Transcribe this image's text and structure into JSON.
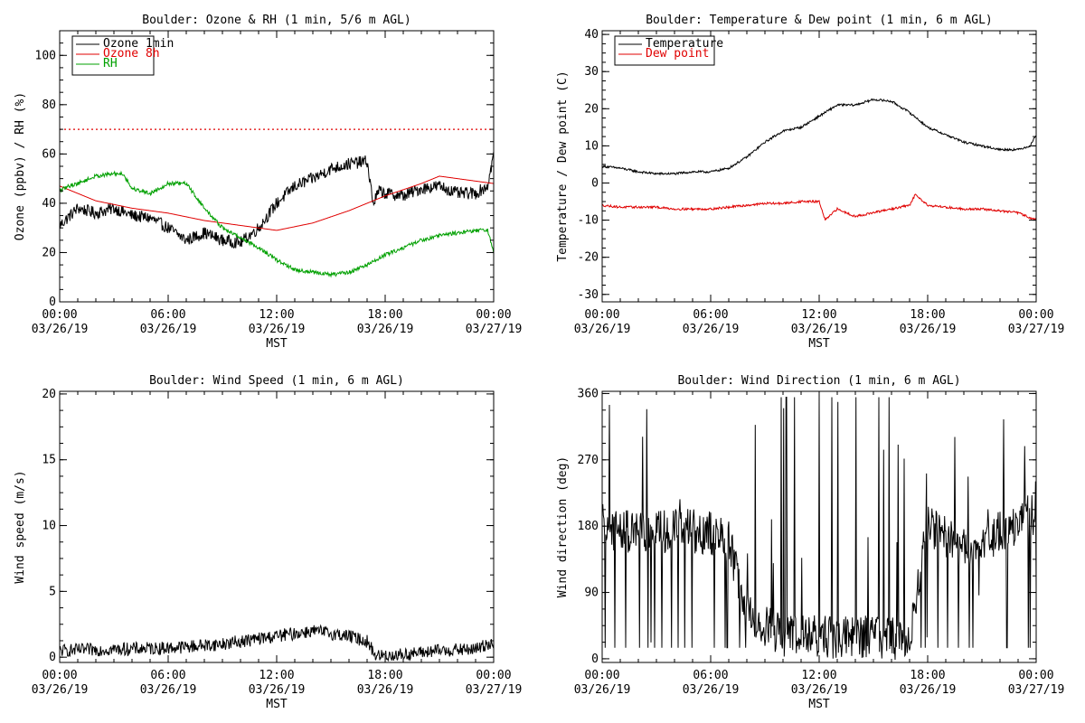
{
  "chart_data": [
    {
      "type": "line",
      "title": "Boulder: Ozone & RH (1 min, 5/6 m AGL)",
      "xlabel": "MST",
      "ylabel": "Ozone (ppbv) / RH (%)",
      "xlim": [
        "2019-03-26 00:00",
        "2019-03-27 00:00"
      ],
      "ylim": [
        0,
        110
      ],
      "yticks": [
        0,
        20,
        40,
        60,
        80,
        100
      ],
      "xticks": [
        {
          "time": "00:00",
          "date": "03/26/19"
        },
        {
          "time": "06:00",
          "date": "03/26/19"
        },
        {
          "time": "12:00",
          "date": "03/26/19"
        },
        {
          "time": "18:00",
          "date": "03/26/19"
        },
        {
          "time": "00:00",
          "date": "03/27/19"
        }
      ],
      "legend_position": "top-left",
      "reference_lines": [
        {
          "y": 70,
          "color": "#e00000",
          "style": "dotted"
        }
      ],
      "series": [
        {
          "name": "Ozone 1min",
          "color": "#000000",
          "noise": 2.5,
          "points": [
            [
              "00:00",
              31
            ],
            [
              "01:00",
              38
            ],
            [
              "02:00",
              36
            ],
            [
              "03:00",
              38
            ],
            [
              "04:00",
              35
            ],
            [
              "05:00",
              34
            ],
            [
              "06:00",
              30
            ],
            [
              "07:00",
              25
            ],
            [
              "08:00",
              28
            ],
            [
              "09:00",
              25
            ],
            [
              "10:00",
              24
            ],
            [
              "11:00",
              30
            ],
            [
              "12:00",
              40
            ],
            [
              "13:00",
              47
            ],
            [
              "14:00",
              50
            ],
            [
              "15:00",
              54
            ],
            [
              "16:00",
              56
            ],
            [
              "17:00",
              57
            ],
            [
              "17:20",
              40
            ],
            [
              "17:40",
              45
            ],
            [
              "18:00",
              44
            ],
            [
              "19:00",
              43
            ],
            [
              "20:00",
              46
            ],
            [
              "21:00",
              47
            ],
            [
              "22:00",
              44
            ],
            [
              "23:00",
              44
            ],
            [
              "23:40",
              47
            ],
            [
              "24:00",
              60
            ]
          ]
        },
        {
          "name": "Ozone 8h",
          "color": "#e00000",
          "noise": 0,
          "points": [
            [
              "00:00",
              47
            ],
            [
              "02:00",
              41
            ],
            [
              "04:00",
              38
            ],
            [
              "06:00",
              36
            ],
            [
              "08:00",
              33
            ],
            [
              "10:00",
              31
            ],
            [
              "12:00",
              29
            ],
            [
              "14:00",
              32
            ],
            [
              "16:00",
              37
            ],
            [
              "18:00",
              43
            ],
            [
              "20:00",
              48
            ],
            [
              "21:00",
              51
            ],
            [
              "22:00",
              50
            ],
            [
              "23:00",
              49
            ],
            [
              "24:00",
              48
            ]
          ]
        },
        {
          "name": "RH",
          "color": "#00a000",
          "noise": 0.8,
          "points": [
            [
              "00:00",
              45
            ],
            [
              "00:30",
              47
            ],
            [
              "01:00",
              48
            ],
            [
              "02:00",
              51
            ],
            [
              "03:00",
              52
            ],
            [
              "03:30",
              52
            ],
            [
              "04:00",
              46
            ],
            [
              "05:00",
              44
            ],
            [
              "06:00",
              48
            ],
            [
              "07:00",
              48
            ],
            [
              "08:00",
              38
            ],
            [
              "09:00",
              30
            ],
            [
              "10:00",
              26
            ],
            [
              "11:00",
              22
            ],
            [
              "12:00",
              17
            ],
            [
              "13:00",
              13
            ],
            [
              "14:00",
              12
            ],
            [
              "15:00",
              11
            ],
            [
              "16:00",
              12
            ],
            [
              "17:00",
              15
            ],
            [
              "18:00",
              19
            ],
            [
              "19:00",
              22
            ],
            [
              "20:00",
              25
            ],
            [
              "21:00",
              27
            ],
            [
              "22:00",
              28
            ],
            [
              "23:00",
              29
            ],
            [
              "23:40",
              29
            ],
            [
              "24:00",
              20
            ]
          ]
        }
      ]
    },
    {
      "type": "line",
      "title": "Boulder: Temperature & Dew point (1 min, 6 m AGL)",
      "xlabel": "MST",
      "ylabel": "Temperature / Dew point (C)",
      "xlim": [
        "2019-03-26 00:00",
        "2019-03-27 00:00"
      ],
      "ylim": [
        -32,
        41
      ],
      "yticks": [
        -30,
        -20,
        -10,
        0,
        10,
        20,
        30,
        40
      ],
      "xticks": [
        {
          "time": "00:00",
          "date": "03/26/19"
        },
        {
          "time": "06:00",
          "date": "03/26/19"
        },
        {
          "time": "12:00",
          "date": "03/26/19"
        },
        {
          "time": "18:00",
          "date": "03/26/19"
        },
        {
          "time": "00:00",
          "date": "03/27/19"
        }
      ],
      "legend_position": "top-left",
      "series": [
        {
          "name": "Temperature",
          "color": "#000000",
          "noise": 0.3,
          "points": [
            [
              "00:00",
              4.5
            ],
            [
              "01:00",
              4
            ],
            [
              "02:00",
              3
            ],
            [
              "03:00",
              2.5
            ],
            [
              "04:00",
              2.5
            ],
            [
              "05:00",
              3
            ],
            [
              "06:00",
              3
            ],
            [
              "07:00",
              4
            ],
            [
              "08:00",
              7
            ],
            [
              "09:00",
              11
            ],
            [
              "10:00",
              14
            ],
            [
              "11:00",
              15
            ],
            [
              "12:00",
              18
            ],
            [
              "13:00",
              21
            ],
            [
              "14:00",
              21
            ],
            [
              "15:00",
              22.5
            ],
            [
              "16:00",
              22
            ],
            [
              "17:00",
              19
            ],
            [
              "18:00",
              15
            ],
            [
              "19:00",
              13
            ],
            [
              "20:00",
              11
            ],
            [
              "21:00",
              10
            ],
            [
              "22:00",
              9
            ],
            [
              "23:00",
              9
            ],
            [
              "23:40",
              10
            ],
            [
              "24:00",
              13
            ]
          ]
        },
        {
          "name": "Dew point",
          "color": "#e00000",
          "noise": 0.3,
          "points": [
            [
              "00:00",
              -6
            ],
            [
              "01:00",
              -6.5
            ],
            [
              "02:00",
              -6.5
            ],
            [
              "03:00",
              -6.5
            ],
            [
              "04:00",
              -7
            ],
            [
              "05:00",
              -7
            ],
            [
              "06:00",
              -7
            ],
            [
              "07:00",
              -6.5
            ],
            [
              "08:00",
              -6
            ],
            [
              "09:00",
              -5.5
            ],
            [
              "10:00",
              -5.5
            ],
            [
              "11:00",
              -5
            ],
            [
              "12:00",
              -5
            ],
            [
              "12:20",
              -10
            ],
            [
              "13:00",
              -7
            ],
            [
              "14:00",
              -9
            ],
            [
              "15:00",
              -8
            ],
            [
              "16:00",
              -7
            ],
            [
              "17:00",
              -6
            ],
            [
              "17:20",
              -3
            ],
            [
              "18:00",
              -6
            ],
            [
              "19:00",
              -6.5
            ],
            [
              "20:00",
              -7
            ],
            [
              "21:00",
              -7
            ],
            [
              "22:00",
              -7.5
            ],
            [
              "23:00",
              -8
            ],
            [
              "24:00",
              -10
            ]
          ]
        }
      ]
    },
    {
      "type": "line",
      "title": "Boulder: Wind Speed (1 min, 6 m AGL)",
      "xlabel": "MST",
      "ylabel": "Wind speed (m/s)",
      "xlim": [
        "2019-03-26 00:00",
        "2019-03-27 00:00"
      ],
      "ylim": [
        -0.4,
        20.2
      ],
      "yticks": [
        0,
        5,
        10,
        15,
        20
      ],
      "xticks": [
        {
          "time": "00:00",
          "date": "03/26/19"
        },
        {
          "time": "06:00",
          "date": "03/26/19"
        },
        {
          "time": "12:00",
          "date": "03/26/19"
        },
        {
          "time": "18:00",
          "date": "03/26/19"
        },
        {
          "time": "00:00",
          "date": "03/27/19"
        }
      ],
      "series": [
        {
          "name": "",
          "color": "#000000",
          "noise": 0.5,
          "points": [
            [
              "00:00",
              0.5
            ],
            [
              "03:00",
              0.6
            ],
            [
              "06:00",
              0.7
            ],
            [
              "09:00",
              1.0
            ],
            [
              "12:00",
              1.6
            ],
            [
              "14:00",
              2.0
            ],
            [
              "16:00",
              1.6
            ],
            [
              "17:00",
              1.2
            ],
            [
              "17:30",
              0.1
            ],
            [
              "19:00",
              0.2
            ],
            [
              "21:00",
              0.5
            ],
            [
              "23:00",
              0.6
            ],
            [
              "24:00",
              1.2
            ]
          ]
        }
      ]
    },
    {
      "type": "line",
      "title": "Boulder: Wind Direction (1 min, 6 m AGL)",
      "xlabel": "MST",
      "ylabel": "Wind direction (deg)",
      "xlim": [
        "2019-03-26 00:00",
        "2019-03-27 00:00"
      ],
      "ylim": [
        -5,
        363
      ],
      "yticks": [
        0,
        90,
        180,
        270,
        360
      ],
      "xticks": [
        {
          "time": "00:00",
          "date": "03/26/19"
        },
        {
          "time": "06:00",
          "date": "03/26/19"
        },
        {
          "time": "12:00",
          "date": "03/26/19"
        },
        {
          "time": "18:00",
          "date": "03/26/19"
        },
        {
          "time": "00:00",
          "date": "03/27/19"
        }
      ],
      "series": [
        {
          "name": "",
          "color": "#000000",
          "noise": 30,
          "spikes": true,
          "points": [
            [
              "00:00",
              180
            ],
            [
              "02:00",
              170
            ],
            [
              "04:00",
              175
            ],
            [
              "06:00",
              170
            ],
            [
              "07:00",
              160
            ],
            [
              "08:00",
              60
            ],
            [
              "10:00",
              30
            ],
            [
              "12:00",
              30
            ],
            [
              "14:00",
              30
            ],
            [
              "16:00",
              30
            ],
            [
              "17:00",
              20
            ],
            [
              "18:00",
              180
            ],
            [
              "20:00",
              150
            ],
            [
              "22:00",
              170
            ],
            [
              "24:00",
              200
            ]
          ]
        }
      ]
    }
  ]
}
